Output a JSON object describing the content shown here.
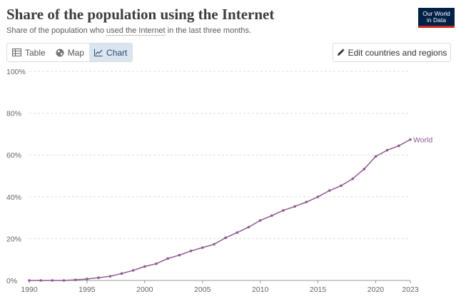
{
  "header": {
    "title": "Share of the population using the Internet",
    "subtitle_pre": "Share of the population who ",
    "subtitle_link": "used the Internet",
    "subtitle_post": " in the last three months.",
    "logo_line1": "Our World",
    "logo_line2": "in Data"
  },
  "tabs": [
    {
      "label": "Table",
      "icon": "table-icon",
      "active": false
    },
    {
      "label": "Map",
      "icon": "globe-icon",
      "active": false
    },
    {
      "label": "Chart",
      "icon": "line-chart-icon",
      "active": true
    }
  ],
  "edit_button": {
    "label": "Edit countries and regions",
    "icon": "pencil-icon"
  },
  "colors": {
    "series": "#8d5a8f",
    "grid": "#dddddd",
    "active_tab": "#dbe5f0"
  },
  "chart_data": {
    "type": "line",
    "title": "Share of the population using the Internet",
    "xlabel": "",
    "ylabel": "",
    "xlim": [
      1990,
      2023
    ],
    "ylim": [
      0,
      100
    ],
    "x_ticks": [
      1990,
      1995,
      2000,
      2005,
      2010,
      2015,
      2020,
      2023
    ],
    "y_ticks": [
      0,
      20,
      40,
      60,
      80,
      100
    ],
    "y_tick_suffix": "%",
    "grid": "horizontal-dashed",
    "series": [
      {
        "name": "World",
        "x": [
          1990,
          1991,
          1992,
          1993,
          1994,
          1995,
          1996,
          1997,
          1998,
          1999,
          2000,
          2001,
          2002,
          2003,
          2004,
          2005,
          2006,
          2007,
          2008,
          2009,
          2010,
          2011,
          2012,
          2013,
          2014,
          2015,
          2016,
          2017,
          2018,
          2019,
          2020,
          2021,
          2022,
          2023
        ],
        "y": [
          0,
          0,
          0,
          0,
          0.3,
          0.7,
          1.3,
          2,
          3.3,
          4.8,
          6.7,
          8,
          10.5,
          12.1,
          14.1,
          15.7,
          17.3,
          20.4,
          22.9,
          25.5,
          28.7,
          31,
          33.5,
          35.4,
          37.5,
          40,
          43,
          45.3,
          48.6,
          53.3,
          59.3,
          62.3,
          64.4,
          67.4
        ]
      }
    ]
  }
}
